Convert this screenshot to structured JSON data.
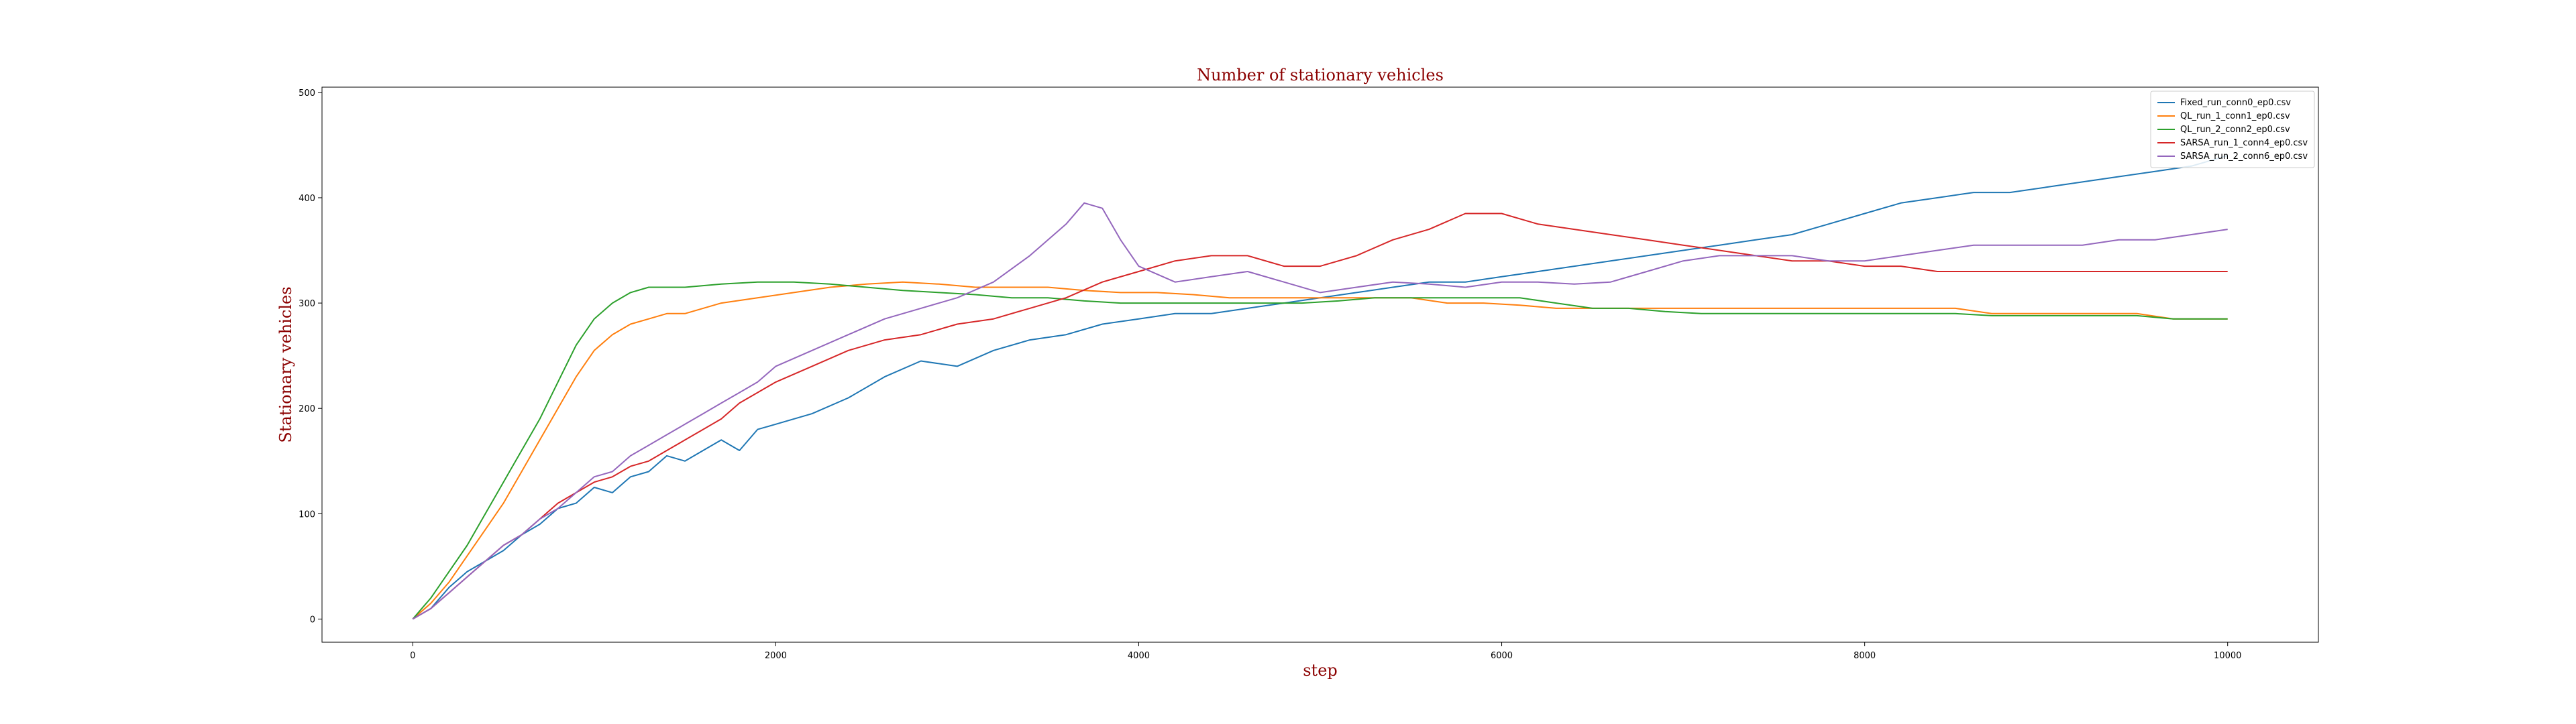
{
  "chart_data": {
    "type": "line",
    "title": "Number of stationary vehicles",
    "xlabel": "step",
    "ylabel": "Stationary vehicles",
    "xlim": [
      -500,
      10500
    ],
    "ylim": [
      -22,
      505
    ],
    "xticks": [
      0,
      2000,
      4000,
      6000,
      8000,
      10000
    ],
    "yticks": [
      0,
      100,
      200,
      300,
      400,
      500
    ],
    "grid": false,
    "legend_position": "top-right",
    "series": [
      {
        "name": "Fixed_run_conn0_ep0.csv",
        "color": "#1f77b4",
        "points": [
          [
            0,
            0
          ],
          [
            100,
            10
          ],
          [
            200,
            30
          ],
          [
            300,
            45
          ],
          [
            400,
            55
          ],
          [
            500,
            65
          ],
          [
            600,
            80
          ],
          [
            700,
            90
          ],
          [
            800,
            105
          ],
          [
            900,
            110
          ],
          [
            1000,
            125
          ],
          [
            1100,
            120
          ],
          [
            1200,
            135
          ],
          [
            1300,
            140
          ],
          [
            1400,
            155
          ],
          [
            1500,
            150
          ],
          [
            1600,
            160
          ],
          [
            1700,
            170
          ],
          [
            1800,
            160
          ],
          [
            1900,
            180
          ],
          [
            2000,
            185
          ],
          [
            2200,
            195
          ],
          [
            2400,
            210
          ],
          [
            2600,
            230
          ],
          [
            2800,
            245
          ],
          [
            3000,
            240
          ],
          [
            3200,
            255
          ],
          [
            3400,
            265
          ],
          [
            3600,
            270
          ],
          [
            3800,
            280
          ],
          [
            4000,
            285
          ],
          [
            4200,
            290
          ],
          [
            4400,
            290
          ],
          [
            4600,
            295
          ],
          [
            4800,
            300
          ],
          [
            5000,
            305
          ],
          [
            5200,
            310
          ],
          [
            5400,
            315
          ],
          [
            5600,
            320
          ],
          [
            5800,
            320
          ],
          [
            6000,
            325
          ],
          [
            6200,
            330
          ],
          [
            6400,
            335
          ],
          [
            6600,
            340
          ],
          [
            6800,
            345
          ],
          [
            7000,
            350
          ],
          [
            7200,
            355
          ],
          [
            7400,
            360
          ],
          [
            7600,
            365
          ],
          [
            7800,
            375
          ],
          [
            8000,
            385
          ],
          [
            8200,
            395
          ],
          [
            8400,
            400
          ],
          [
            8600,
            405
          ],
          [
            8800,
            405
          ],
          [
            9000,
            410
          ],
          [
            9200,
            415
          ],
          [
            9400,
            420
          ],
          [
            9600,
            425
          ],
          [
            9800,
            430
          ],
          [
            10000,
            440
          ]
        ]
      },
      {
        "name": "QL_run_1_conn1_ep0.csv",
        "color": "#ff7f0e",
        "points": [
          [
            0,
            0
          ],
          [
            100,
            15
          ],
          [
            200,
            35
          ],
          [
            300,
            60
          ],
          [
            400,
            85
          ],
          [
            500,
            110
          ],
          [
            600,
            140
          ],
          [
            700,
            170
          ],
          [
            800,
            200
          ],
          [
            900,
            230
          ],
          [
            1000,
            255
          ],
          [
            1100,
            270
          ],
          [
            1200,
            280
          ],
          [
            1300,
            285
          ],
          [
            1400,
            290
          ],
          [
            1500,
            290
          ],
          [
            1700,
            300
          ],
          [
            1900,
            305
          ],
          [
            2100,
            310
          ],
          [
            2300,
            315
          ],
          [
            2500,
            318
          ],
          [
            2700,
            320
          ],
          [
            2900,
            318
          ],
          [
            3100,
            315
          ],
          [
            3300,
            315
          ],
          [
            3500,
            315
          ],
          [
            3700,
            312
          ],
          [
            3900,
            310
          ],
          [
            4100,
            310
          ],
          [
            4300,
            308
          ],
          [
            4500,
            305
          ],
          [
            4700,
            305
          ],
          [
            4900,
            305
          ],
          [
            5100,
            305
          ],
          [
            5300,
            305
          ],
          [
            5500,
            305
          ],
          [
            5700,
            300
          ],
          [
            5900,
            300
          ],
          [
            6100,
            298
          ],
          [
            6300,
            295
          ],
          [
            6500,
            295
          ],
          [
            6700,
            295
          ],
          [
            6900,
            295
          ],
          [
            7100,
            295
          ],
          [
            7300,
            295
          ],
          [
            7500,
            295
          ],
          [
            7700,
            295
          ],
          [
            7900,
            295
          ],
          [
            8100,
            295
          ],
          [
            8300,
            295
          ],
          [
            8500,
            295
          ],
          [
            8700,
            290
          ],
          [
            8900,
            290
          ],
          [
            9100,
            290
          ],
          [
            9300,
            290
          ],
          [
            9500,
            290
          ],
          [
            9700,
            285
          ],
          [
            9900,
            285
          ],
          [
            10000,
            285
          ]
        ]
      },
      {
        "name": "QL_run_2_conn2_ep0.csv",
        "color": "#2ca02c",
        "points": [
          [
            0,
            0
          ],
          [
            100,
            20
          ],
          [
            200,
            45
          ],
          [
            300,
            70
          ],
          [
            400,
            100
          ],
          [
            500,
            130
          ],
          [
            600,
            160
          ],
          [
            700,
            190
          ],
          [
            800,
            225
          ],
          [
            900,
            260
          ],
          [
            1000,
            285
          ],
          [
            1100,
            300
          ],
          [
            1200,
            310
          ],
          [
            1300,
            315
          ],
          [
            1400,
            315
          ],
          [
            1500,
            315
          ],
          [
            1700,
            318
          ],
          [
            1900,
            320
          ],
          [
            2100,
            320
          ],
          [
            2300,
            318
          ],
          [
            2500,
            315
          ],
          [
            2700,
            312
          ],
          [
            2900,
            310
          ],
          [
            3100,
            308
          ],
          [
            3300,
            305
          ],
          [
            3500,
            305
          ],
          [
            3700,
            302
          ],
          [
            3900,
            300
          ],
          [
            4100,
            300
          ],
          [
            4300,
            300
          ],
          [
            4500,
            300
          ],
          [
            4700,
            300
          ],
          [
            4900,
            300
          ],
          [
            5100,
            302
          ],
          [
            5300,
            305
          ],
          [
            5500,
            305
          ],
          [
            5700,
            305
          ],
          [
            5900,
            305
          ],
          [
            6100,
            305
          ],
          [
            6300,
            300
          ],
          [
            6500,
            295
          ],
          [
            6700,
            295
          ],
          [
            6900,
            292
          ],
          [
            7100,
            290
          ],
          [
            7300,
            290
          ],
          [
            7500,
            290
          ],
          [
            7700,
            290
          ],
          [
            7900,
            290
          ],
          [
            8100,
            290
          ],
          [
            8300,
            290
          ],
          [
            8500,
            290
          ],
          [
            8700,
            288
          ],
          [
            8900,
            288
          ],
          [
            9100,
            288
          ],
          [
            9300,
            288
          ],
          [
            9500,
            288
          ],
          [
            9700,
            285
          ],
          [
            9900,
            285
          ],
          [
            10000,
            285
          ]
        ]
      },
      {
        "name": "SARSA_run_1_conn4_ep0.csv",
        "color": "#d62728",
        "points": [
          [
            0,
            0
          ],
          [
            100,
            10
          ],
          [
            200,
            25
          ],
          [
            300,
            40
          ],
          [
            400,
            55
          ],
          [
            500,
            70
          ],
          [
            600,
            80
          ],
          [
            700,
            95
          ],
          [
            800,
            110
          ],
          [
            900,
            120
          ],
          [
            1000,
            130
          ],
          [
            1100,
            135
          ],
          [
            1200,
            145
          ],
          [
            1300,
            150
          ],
          [
            1400,
            160
          ],
          [
            1500,
            170
          ],
          [
            1600,
            180
          ],
          [
            1700,
            190
          ],
          [
            1800,
            205
          ],
          [
            1900,
            215
          ],
          [
            2000,
            225
          ],
          [
            2200,
            240
          ],
          [
            2400,
            255
          ],
          [
            2600,
            265
          ],
          [
            2800,
            270
          ],
          [
            3000,
            280
          ],
          [
            3200,
            285
          ],
          [
            3400,
            295
          ],
          [
            3600,
            305
          ],
          [
            3800,
            320
          ],
          [
            4000,
            330
          ],
          [
            4200,
            340
          ],
          [
            4400,
            345
          ],
          [
            4600,
            345
          ],
          [
            4800,
            335
          ],
          [
            5000,
            335
          ],
          [
            5200,
            345
          ],
          [
            5400,
            360
          ],
          [
            5600,
            370
          ],
          [
            5800,
            385
          ],
          [
            6000,
            385
          ],
          [
            6200,
            375
          ],
          [
            6400,
            370
          ],
          [
            6600,
            365
          ],
          [
            6800,
            360
          ],
          [
            7000,
            355
          ],
          [
            7200,
            350
          ],
          [
            7400,
            345
          ],
          [
            7600,
            340
          ],
          [
            7800,
            340
          ],
          [
            8000,
            335
          ],
          [
            8200,
            335
          ],
          [
            8400,
            330
          ],
          [
            8600,
            330
          ],
          [
            8800,
            330
          ],
          [
            9000,
            330
          ],
          [
            9200,
            330
          ],
          [
            9400,
            330
          ],
          [
            9600,
            330
          ],
          [
            9800,
            330
          ],
          [
            10000,
            330
          ]
        ]
      },
      {
        "name": "SARSA_run_2_conn6_ep0.csv",
        "color": "#9467bd",
        "points": [
          [
            0,
            0
          ],
          [
            100,
            10
          ],
          [
            200,
            25
          ],
          [
            300,
            40
          ],
          [
            400,
            55
          ],
          [
            500,
            70
          ],
          [
            600,
            80
          ],
          [
            700,
            95
          ],
          [
            800,
            105
          ],
          [
            900,
            120
          ],
          [
            1000,
            135
          ],
          [
            1100,
            140
          ],
          [
            1200,
            155
          ],
          [
            1300,
            165
          ],
          [
            1400,
            175
          ],
          [
            1500,
            185
          ],
          [
            1600,
            195
          ],
          [
            1700,
            205
          ],
          [
            1800,
            215
          ],
          [
            1900,
            225
          ],
          [
            2000,
            240
          ],
          [
            2200,
            255
          ],
          [
            2400,
            270
          ],
          [
            2600,
            285
          ],
          [
            2800,
            295
          ],
          [
            3000,
            305
          ],
          [
            3200,
            320
          ],
          [
            3400,
            345
          ],
          [
            3600,
            375
          ],
          [
            3700,
            395
          ],
          [
            3800,
            390
          ],
          [
            3900,
            360
          ],
          [
            4000,
            335
          ],
          [
            4200,
            320
          ],
          [
            4400,
            325
          ],
          [
            4600,
            330
          ],
          [
            4800,
            320
          ],
          [
            5000,
            310
          ],
          [
            5200,
            315
          ],
          [
            5400,
            320
          ],
          [
            5600,
            318
          ],
          [
            5800,
            315
          ],
          [
            6000,
            320
          ],
          [
            6200,
            320
          ],
          [
            6400,
            318
          ],
          [
            6600,
            320
          ],
          [
            6800,
            330
          ],
          [
            7000,
            340
          ],
          [
            7200,
            345
          ],
          [
            7400,
            345
          ],
          [
            7600,
            345
          ],
          [
            7800,
            340
          ],
          [
            8000,
            340
          ],
          [
            8200,
            345
          ],
          [
            8400,
            350
          ],
          [
            8600,
            355
          ],
          [
            8800,
            355
          ],
          [
            9000,
            355
          ],
          [
            9200,
            355
          ],
          [
            9400,
            360
          ],
          [
            9600,
            360
          ],
          [
            9800,
            365
          ],
          [
            10000,
            370
          ]
        ]
      }
    ]
  }
}
